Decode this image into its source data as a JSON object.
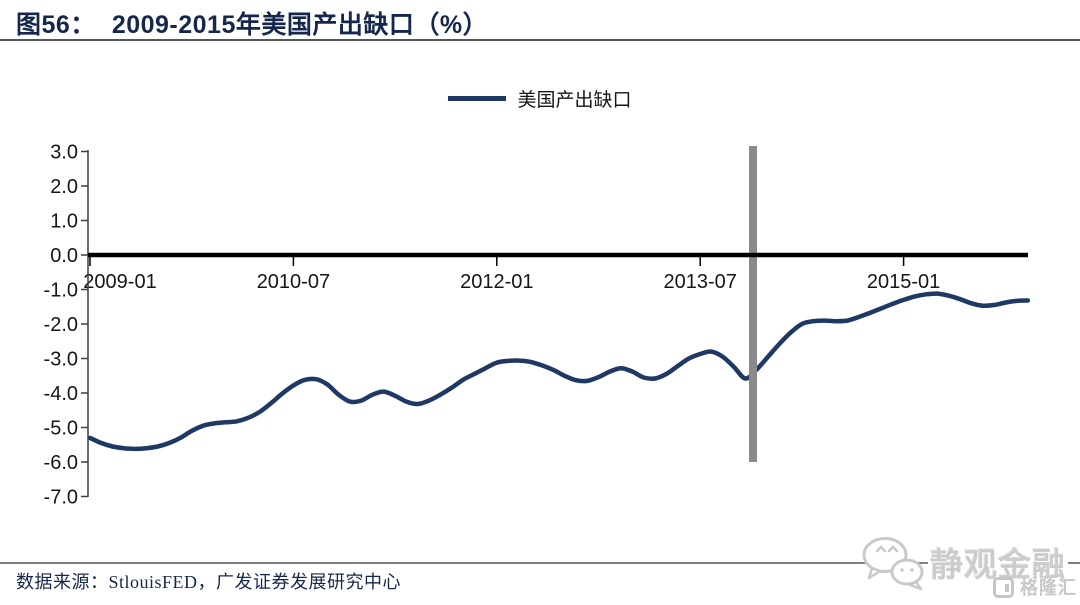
{
  "header": {
    "figure_no": "图56：",
    "title": "2009-2015年美国产出缺口（%）"
  },
  "legend": {
    "label": "美国产出缺口"
  },
  "chart_data": {
    "type": "line",
    "title": "2009-2015年美国产出缺口（%）",
    "xlabel": "",
    "ylabel": "",
    "ylim": [
      -7.0,
      3.0
    ],
    "grid": false,
    "zero_line": true,
    "legend_position": "top-center",
    "x_ticks": [
      "2009-01",
      "2010-07",
      "2012-01",
      "2013-07",
      "2015-01"
    ],
    "y_ticks": [
      "3.0",
      "2.0",
      "1.0",
      "0.0",
      "-1.0",
      "-2.0",
      "-3.0",
      "-4.0",
      "-5.0",
      "-6.0",
      "-7.0"
    ],
    "series": [
      {
        "name": "美国产出缺口",
        "color": "#1F3864",
        "start": "2009-01",
        "frequency": "monthly",
        "values": [
          -5.3,
          -5.45,
          -5.55,
          -5.6,
          -5.62,
          -5.6,
          -5.55,
          -5.45,
          -5.3,
          -5.1,
          -4.95,
          -4.88,
          -4.85,
          -4.82,
          -4.72,
          -4.55,
          -4.3,
          -4.02,
          -3.78,
          -3.62,
          -3.6,
          -3.75,
          -4.05,
          -4.25,
          -4.22,
          -4.05,
          -3.96,
          -4.08,
          -4.25,
          -4.32,
          -4.22,
          -4.05,
          -3.85,
          -3.62,
          -3.45,
          -3.28,
          -3.12,
          -3.07,
          -3.06,
          -3.1,
          -3.2,
          -3.33,
          -3.5,
          -3.63,
          -3.65,
          -3.54,
          -3.38,
          -3.28,
          -3.38,
          -3.55,
          -3.58,
          -3.45,
          -3.22,
          -3.0,
          -2.87,
          -2.8,
          -2.95,
          -3.25,
          -3.58,
          -3.32,
          -2.95,
          -2.58,
          -2.25,
          -2.0,
          -1.92,
          -1.9,
          -1.92,
          -1.9,
          -1.8,
          -1.68,
          -1.55,
          -1.42,
          -1.3,
          -1.2,
          -1.14,
          -1.12,
          -1.18,
          -1.28,
          -1.4,
          -1.47,
          -1.45,
          -1.38,
          -1.33,
          -1.32
        ]
      }
    ],
    "annotations": [
      {
        "type": "vertical-bar",
        "x": "2013-11",
        "y_from": 3.0,
        "y_to": -6.0,
        "color": "#8a8a8a"
      }
    ]
  },
  "footer": {
    "source": "数据来源：StlouisFED，广发证券发展研究中心"
  },
  "watermark": {
    "wechat_label": "静观金融",
    "logo_label": "格隆汇"
  }
}
